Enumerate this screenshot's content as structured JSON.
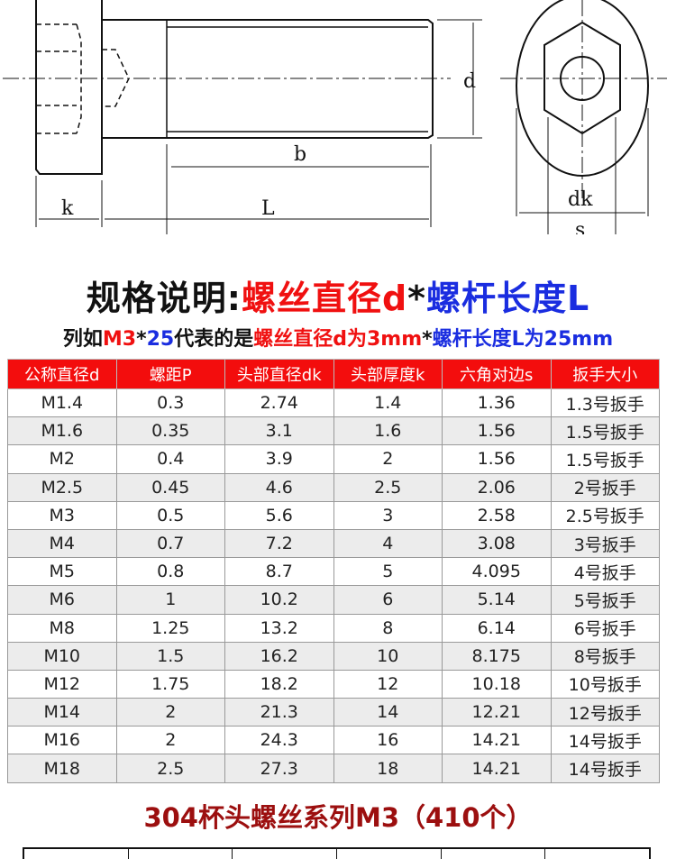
{
  "diagram": {
    "labels": {
      "d": "d",
      "b": "b",
      "k": "k",
      "L": "L",
      "s": "s",
      "dk": "dk"
    }
  },
  "heading": {
    "prefix": "规格说明:",
    "red": "螺丝直径d",
    "star": "*",
    "blue": "螺杆长度L"
  },
  "example": {
    "p1": "列如",
    "m3": "M3",
    "star": "*",
    "len": "25",
    "p2": "代表的是",
    "red": "螺丝直径d为3mm",
    "star2": "*",
    "blue": "螺杆长度L为25mm"
  },
  "colors": {
    "header_bg": "#f30d0d",
    "red": "#f01010",
    "blue": "#1a2de0",
    "series": "#9c0f0f"
  },
  "table": {
    "headers": [
      "公称直径d",
      "螺距P",
      "头部直径dk",
      "头部厚度k",
      "六角对边s",
      "扳手大小"
    ],
    "rows": [
      [
        "M1.4",
        "0.3",
        "2.74",
        "1.4",
        "1.36",
        "1.3号扳手"
      ],
      [
        "M1.6",
        "0.35",
        "3.1",
        "1.6",
        "1.56",
        "1.5号扳手"
      ],
      [
        "M2",
        "0.4",
        "3.9",
        "2",
        "1.56",
        "1.5号扳手"
      ],
      [
        "M2.5",
        "0.45",
        "4.6",
        "2.5",
        "2.06",
        "2号扳手"
      ],
      [
        "M3",
        "0.5",
        "5.6",
        "3",
        "2.58",
        "2.5号扳手"
      ],
      [
        "M4",
        "0.7",
        "7.2",
        "4",
        "3.08",
        "3号扳手"
      ],
      [
        "M5",
        "0.8",
        "8.7",
        "5",
        "4.095",
        "4号扳手"
      ],
      [
        "M6",
        "1",
        "10.2",
        "6",
        "5.14",
        "5号扳手"
      ],
      [
        "M8",
        "1.25",
        "13.2",
        "8",
        "6.14",
        "6号扳手"
      ],
      [
        "M10",
        "1.5",
        "16.2",
        "10",
        "8.175",
        "8号扳手"
      ],
      [
        "M12",
        "1.75",
        "18.2",
        "12",
        "10.18",
        "10号扳手"
      ],
      [
        "M14",
        "2",
        "21.3",
        "14",
        "12.21",
        "12号扳手"
      ],
      [
        "M16",
        "2",
        "24.3",
        "16",
        "14.21",
        "14号扳手"
      ],
      [
        "M18",
        "2.5",
        "27.3",
        "18",
        "14.21",
        "14号扳手"
      ]
    ]
  },
  "series_title": "304杯头螺丝系列M3（410个）"
}
